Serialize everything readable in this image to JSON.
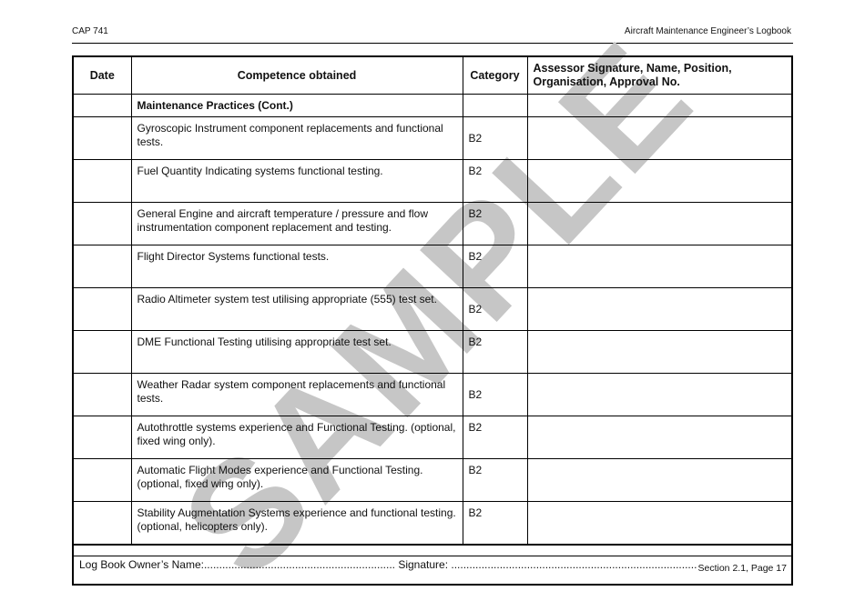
{
  "header": {
    "left": "CAP 741",
    "right": "Aircraft Maintenance Engineer’s Logbook"
  },
  "watermark": "SAMPLE",
  "table": {
    "columns": [
      "Date",
      "Competence obtained",
      "Category",
      "Assessor Signature, Name, Position, Organisation, Approval No."
    ],
    "section": "Maintenance Practices (Cont.)",
    "rows": [
      {
        "competence": "Gyroscopic Instrument component replacements and functional tests.",
        "category": "B2"
      },
      {
        "competence": "Fuel Quantity Indicating systems functional testing.",
        "category": "B2"
      },
      {
        "competence": "General Engine and aircraft temperature / pressure and flow instrumentation component replacement and testing.",
        "category": "B2"
      },
      {
        "competence": "Flight Director Systems functional tests.",
        "category": "B2"
      },
      {
        "competence": "Radio Altimeter system test utilising appropriate (555) test set.",
        "category": "B2"
      },
      {
        "competence": "DME Functional Testing utilising appropriate test set.",
        "category": "B2"
      },
      {
        "competence": "Weather Radar system component replacements and functional tests.",
        "category": "B2"
      },
      {
        "competence": "Autothrottle systems experience and Functional Testing. (optional, fixed wing only).",
        "category": "B2"
      },
      {
        "competence": "Automatic Flight Modes experience and Functional Testing. (optional, fixed wing only).",
        "category": "B2"
      },
      {
        "competence": "Stability Augmentation Systems experience and functional testing. (optional, helicopters only).",
        "category": "B2"
      }
    ],
    "footer": "Log Book Owner’s Name:............................................................... Signature:  ................................................................................."
  },
  "page_footer": "Section 2.1, Page 17"
}
